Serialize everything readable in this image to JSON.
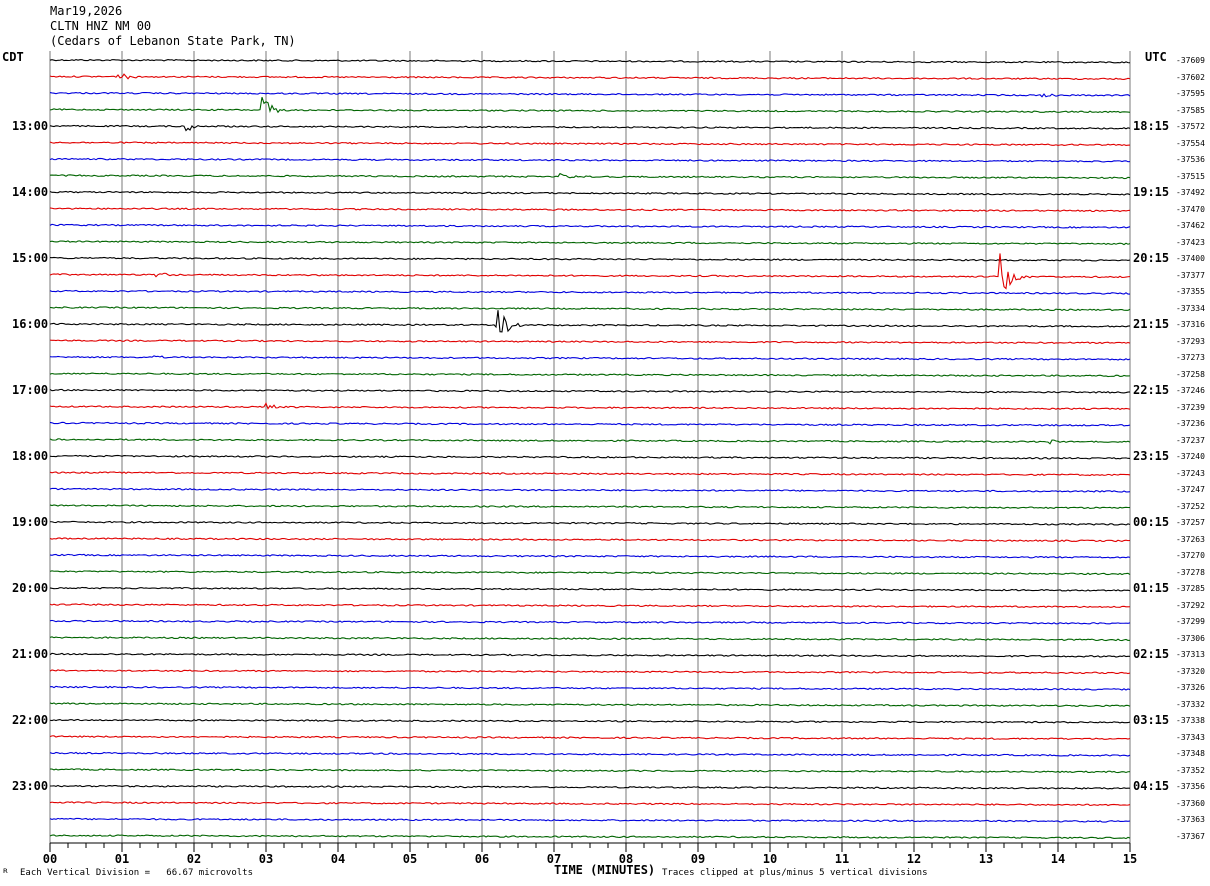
{
  "header": {
    "date": "Mar19,2026",
    "station": "CLTN HNZ NM 00",
    "location": "(Cedars of Lebanon State Park, TN)"
  },
  "left_tz": "CDT",
  "right_tz": "UTC",
  "footer": {
    "xlabel": "TIME (MINUTES)",
    "scale": "Each Vertical Division =   66.67 microvolts",
    "clip": "Traces clipped at plus/minus 5 vertical divisions"
  },
  "colors": {
    "trace_cycle": [
      "#000000",
      "#e00000",
      "#0000dd",
      "#006400"
    ],
    "grid": "#7a7a7a"
  },
  "chart_data": {
    "type": "line",
    "title": "CLTN HNZ NM 00",
    "xlabel": "TIME (MINUTES)",
    "xlim": [
      0,
      15
    ],
    "x_ticks": [
      "00",
      "01",
      "02",
      "03",
      "04",
      "05",
      "06",
      "07",
      "08",
      "09",
      "10",
      "11",
      "12",
      "13",
      "14",
      "15"
    ],
    "row_minutes": 15,
    "left_hour_labels": [
      "13:00",
      "14:00",
      "15:00",
      "16:00",
      "17:00",
      "18:00",
      "19:00",
      "20:00",
      "21:00",
      "22:00",
      "23:00"
    ],
    "right_hour_labels": [
      "18:15",
      "19:15",
      "20:15",
      "21:15",
      "22:15",
      "23:15",
      "00:15",
      "01:15",
      "02:15",
      "03:15",
      "04:15"
    ],
    "right_values": [
      "-37609",
      "-37602",
      "-37595",
      "-37585",
      "-37572",
      "-37554",
      "-37536",
      "-37515",
      "-37492",
      "-37470",
      "-37462",
      "-37423",
      "-37400",
      "-37377",
      "-37355",
      "-37334",
      "-37316",
      "-37293",
      "-37273",
      "-37258",
      "-37246",
      "-37239",
      "-37236",
      "-37237",
      "-37240",
      "-37243",
      "-37247",
      "-37252",
      "-37257",
      "-37263",
      "-37270",
      "-37278",
      "-37285",
      "-37292",
      "-37299",
      "-37306",
      "-37313",
      "-37320",
      "-37326",
      "-37332",
      "-37338",
      "-37343",
      "-37348",
      "-37352",
      "-37356",
      "-37360",
      "-37363",
      "-37367"
    ],
    "traces_count": 48,
    "events": [
      {
        "trace": 1,
        "minute": 0.95,
        "amp": 0.35
      },
      {
        "trace": 3,
        "minute": 2.95,
        "amp": 0.9
      },
      {
        "trace": 4,
        "minute": 1.9,
        "amp": 0.35
      },
      {
        "trace": 7,
        "minute": 7.1,
        "amp": 0.2
      },
      {
        "trace": 2,
        "minute": 13.8,
        "amp": 0.2
      },
      {
        "trace": 13,
        "minute": 1.5,
        "amp": 0.15
      },
      {
        "trace": 13,
        "minute": 13.2,
        "amp": 1.6
      },
      {
        "trace": 16,
        "minute": 6.22,
        "amp": 1.5
      },
      {
        "trace": 18,
        "minute": 1.4,
        "amp": 0.2
      },
      {
        "trace": 21,
        "minute": 3.0,
        "amp": 0.35
      },
      {
        "trace": 23,
        "minute": 13.9,
        "amp": 0.15
      }
    ]
  }
}
